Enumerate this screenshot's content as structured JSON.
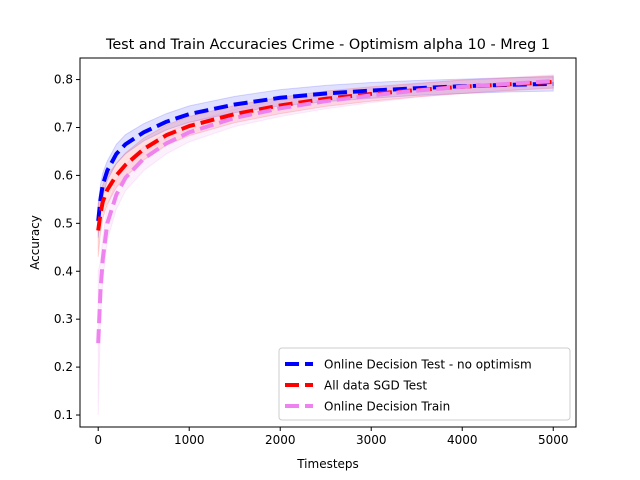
{
  "chart_data": {
    "type": "line",
    "title": "Test and Train Accuracies Crime - Optimism alpha 10 - Mreg 1",
    "xlabel": "Timesteps",
    "ylabel": "Accuracy",
    "xlim": [
      -200,
      5250
    ],
    "ylim": [
      0.075,
      0.845
    ],
    "xticks": [
      0,
      1000,
      2000,
      3000,
      4000,
      5000
    ],
    "xtick_labels": [
      "0",
      "1000",
      "2000",
      "3000",
      "4000",
      "5000"
    ],
    "yticks": [
      0.1,
      0.2,
      0.3,
      0.4,
      0.5,
      0.6,
      0.7,
      0.8
    ],
    "ytick_labels": [
      "0.1",
      "0.2",
      "0.3",
      "0.4",
      "0.5",
      "0.6",
      "0.7",
      "0.8"
    ],
    "grid": false,
    "legend_position": "bottom-right",
    "x": [
      0,
      25,
      50,
      100,
      200,
      300,
      500,
      750,
      1000,
      1500,
      2000,
      2500,
      3000,
      3500,
      4000,
      4500,
      5000
    ],
    "series": [
      {
        "name": "Online Decision Test - no optimism",
        "color": "#0000ff",
        "values": [
          0.505,
          0.55,
          0.58,
          0.61,
          0.645,
          0.665,
          0.69,
          0.712,
          0.728,
          0.748,
          0.762,
          0.771,
          0.777,
          0.782,
          0.786,
          0.789,
          0.791
        ],
        "band_lower": [
          0.47,
          0.52,
          0.555,
          0.59,
          0.625,
          0.645,
          0.672,
          0.695,
          0.711,
          0.731,
          0.745,
          0.754,
          0.761,
          0.767,
          0.771,
          0.774,
          0.776
        ],
        "band_upper": [
          0.54,
          0.58,
          0.605,
          0.63,
          0.665,
          0.685,
          0.708,
          0.729,
          0.745,
          0.765,
          0.779,
          0.788,
          0.794,
          0.798,
          0.801,
          0.804,
          0.806
        ]
      },
      {
        "name": "All data SGD Test",
        "color": "#ff0000",
        "values": [
          0.485,
          0.52,
          0.545,
          0.57,
          0.6,
          0.622,
          0.655,
          0.684,
          0.703,
          0.728,
          0.746,
          0.76,
          0.77,
          0.778,
          0.785,
          0.79,
          0.795
        ],
        "band_lower": [
          0.43,
          0.48,
          0.51,
          0.54,
          0.575,
          0.597,
          0.632,
          0.663,
          0.683,
          0.71,
          0.729,
          0.744,
          0.755,
          0.764,
          0.771,
          0.777,
          0.782
        ],
        "band_upper": [
          0.54,
          0.56,
          0.58,
          0.6,
          0.625,
          0.647,
          0.678,
          0.705,
          0.723,
          0.746,
          0.763,
          0.776,
          0.785,
          0.792,
          0.799,
          0.803,
          0.808
        ]
      },
      {
        "name": "Online Decision Train",
        "color": "#ee82ee",
        "values": [
          0.25,
          0.36,
          0.425,
          0.5,
          0.56,
          0.595,
          0.635,
          0.667,
          0.69,
          0.72,
          0.74,
          0.755,
          0.767,
          0.777,
          0.785,
          0.791,
          0.797
        ],
        "band_lower": [
          0.1,
          0.3,
          0.38,
          0.465,
          0.53,
          0.568,
          0.61,
          0.645,
          0.67,
          0.702,
          0.723,
          0.739,
          0.752,
          0.763,
          0.771,
          0.778,
          0.784
        ],
        "band_upper": [
          0.4,
          0.42,
          0.47,
          0.535,
          0.59,
          0.622,
          0.66,
          0.689,
          0.71,
          0.738,
          0.757,
          0.771,
          0.782,
          0.791,
          0.799,
          0.804,
          0.81
        ]
      }
    ]
  }
}
